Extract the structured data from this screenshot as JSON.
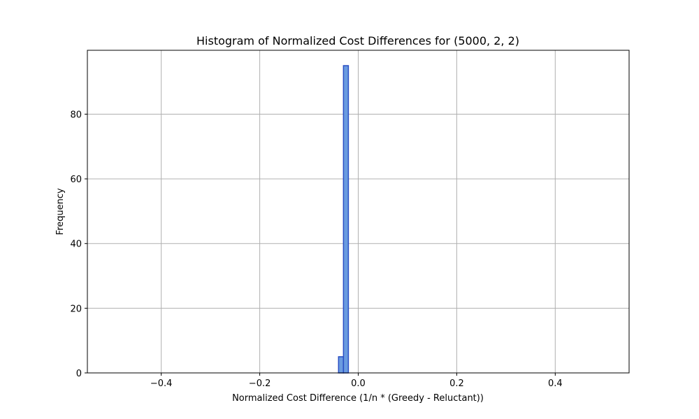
{
  "chart_data": {
    "type": "bar",
    "title": "Histogram of Normalized Cost Differences for (5000, 2, 2)",
    "xlabel": "Normalized Cost Difference (1/n * (Greedy - Reluctant))",
    "ylabel": "Frequency",
    "xlim": [
      -0.55,
      0.55
    ],
    "ylim": [
      0,
      99.75
    ],
    "grid": true,
    "x_ticks": [
      -0.4,
      -0.2,
      0.0,
      0.2,
      0.4
    ],
    "x_tick_labels": [
      "−0.4",
      "−0.2",
      "0.0",
      "0.2",
      "0.4"
    ],
    "y_ticks": [
      0,
      20,
      40,
      60,
      80
    ],
    "y_tick_labels": [
      "0",
      "20",
      "40",
      "60",
      "80"
    ],
    "bin_range": [
      -0.5,
      0.5
    ],
    "bin_width": 0.01,
    "bins": [
      {
        "x0": -0.04,
        "x1": -0.03,
        "count": 5
      },
      {
        "x0": -0.03,
        "x1": -0.02,
        "count": 95
      }
    ],
    "colors": {
      "bar_fill": "#6a9be0",
      "bar_edge": "#2a4fc4",
      "grid": "#b0b0b0",
      "baseline": "#000000"
    }
  }
}
